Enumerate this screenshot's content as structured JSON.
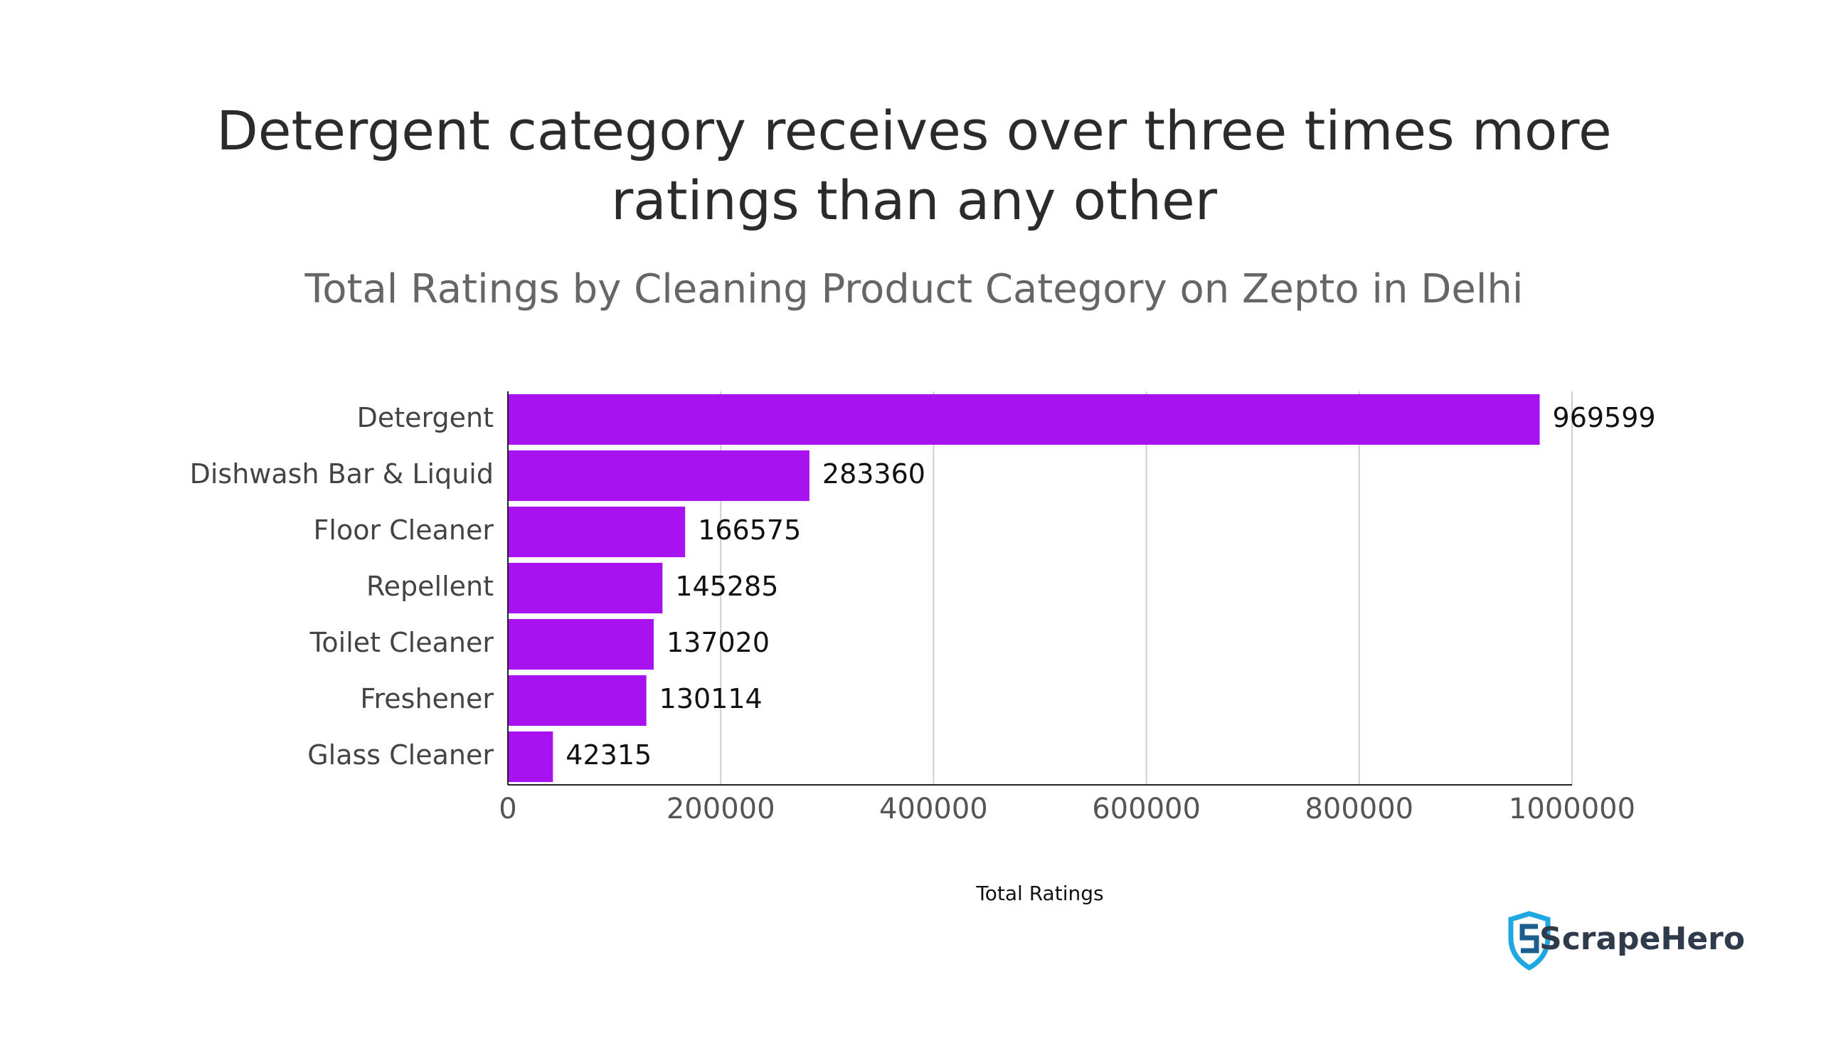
{
  "chart_data": {
    "type": "barh",
    "title": [
      "Detergent category receives over three times more",
      "ratings than any other"
    ],
    "subtitle": "Total Ratings by Cleaning Product Category on Zepto in Delhi",
    "categories": [
      "Detergent",
      "Dishwash Bar & Liquid",
      "Floor Cleaner",
      "Repellent",
      "Toilet Cleaner",
      "Freshener",
      "Glass Cleaner"
    ],
    "values": [
      969599,
      283360,
      166575,
      145285,
      137020,
      130114,
      42315
    ],
    "color": "#a812f0",
    "xlabel": "Total Ratings",
    "xlim": [
      0,
      1000000
    ],
    "xticks": [
      0,
      200000,
      400000,
      600000,
      800000,
      1000000
    ],
    "grid": true,
    "brand": "ScrapeHero"
  }
}
